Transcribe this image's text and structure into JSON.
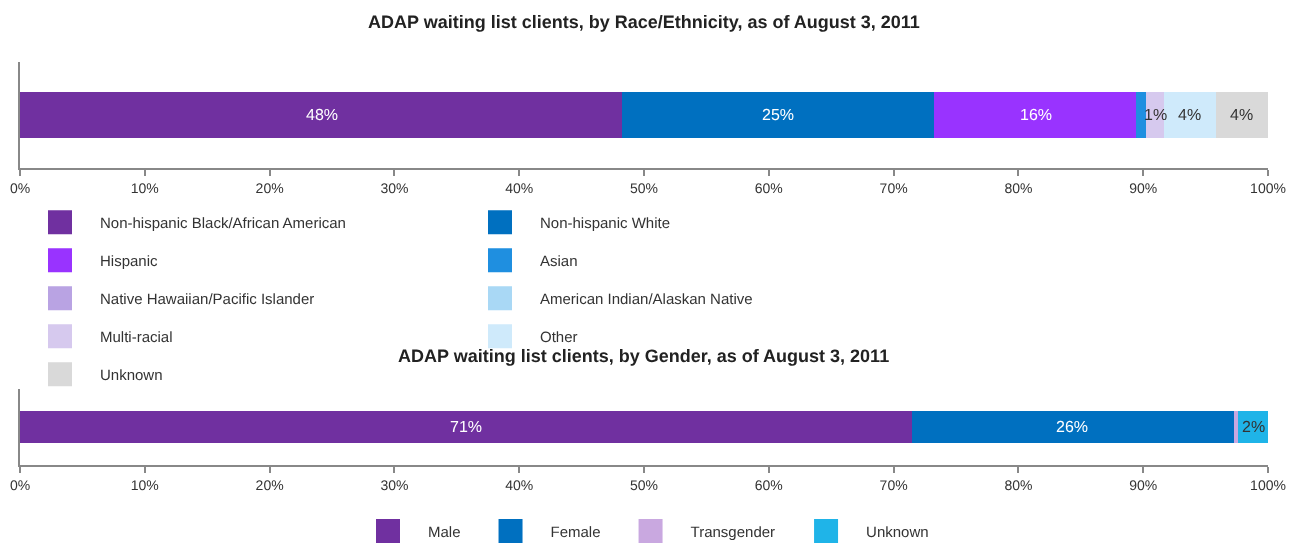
{
  "chart_data": [
    {
      "type": "bar",
      "title": "ADAP waiting list clients, by Race/Ethnicity, as of August 3, 2011",
      "orientation": "horizontal",
      "stacked": true,
      "categories": [
        null
      ],
      "xlim": [
        0,
        100
      ],
      "xticks": [
        {
          "value": 0,
          "label": "0%"
        },
        {
          "value": 10,
          "label": "10%"
        },
        {
          "value": 20,
          "label": "20%"
        },
        {
          "value": 30,
          "label": "30%"
        },
        {
          "value": 40,
          "label": "40%"
        },
        {
          "value": 50,
          "label": "50%"
        },
        {
          "value": 60,
          "label": "60%"
        },
        {
          "value": 70,
          "label": "70%"
        },
        {
          "value": 80,
          "label": "80%"
        },
        {
          "value": 90,
          "label": "90%"
        },
        {
          "value": 100,
          "label": "100%"
        }
      ],
      "legend": "bottom",
      "series": [
        {
          "name": "Non-hispanic Black/African American",
          "color": "#7030a0",
          "values": [
            48.3
          ],
          "value_labels": [
            "48%"
          ]
        },
        {
          "name": "Non-hispanic White",
          "color": "#0070c0",
          "values": [
            25.0
          ],
          "value_labels": [
            "25%"
          ]
        },
        {
          "name": "Hispanic",
          "color": "#9933ff",
          "values": [
            16.2
          ],
          "value_labels": [
            "16%"
          ]
        },
        {
          "name": "Asian",
          "color": "#1f8fe0",
          "values": [
            0.7
          ],
          "value_labels": [
            null
          ]
        },
        {
          "name": "Native Hawaiian/Pacific Islander",
          "color": "#b9a3e3",
          "values": [
            null
          ],
          "value_labels": [
            null
          ]
        },
        {
          "name": "American Indian/Alaskan Native",
          "color": "#a9d8f5",
          "values": [
            null
          ],
          "value_labels": [
            null
          ]
        },
        {
          "name": "Multi-racial",
          "color": "#d6c9ee",
          "values": [
            1.5
          ],
          "value_labels": [
            "1%"
          ]
        },
        {
          "name": "Other",
          "color": "#cfeafb",
          "values": [
            4.2
          ],
          "value_labels": [
            "4%"
          ]
        },
        {
          "name": "Unknown",
          "color": "#d9d9d9",
          "values": [
            4.1
          ],
          "value_labels": [
            "4%"
          ]
        }
      ]
    },
    {
      "type": "bar",
      "title": "ADAP waiting list clients, by Gender, as of August 3, 2011",
      "orientation": "horizontal",
      "stacked": true,
      "categories": [
        null
      ],
      "xlim": [
        0,
        100
      ],
      "xticks": [
        {
          "value": 0,
          "label": "0%"
        },
        {
          "value": 10,
          "label": "10%"
        },
        {
          "value": 20,
          "label": "20%"
        },
        {
          "value": 30,
          "label": "30%"
        },
        {
          "value": 40,
          "label": "40%"
        },
        {
          "value": 50,
          "label": "50%"
        },
        {
          "value": 60,
          "label": "60%"
        },
        {
          "value": 70,
          "label": "70%"
        },
        {
          "value": 80,
          "label": "80%"
        },
        {
          "value": 90,
          "label": "90%"
        },
        {
          "value": 100,
          "label": "100%"
        }
      ],
      "legend": "bottom",
      "series": [
        {
          "name": "Male",
          "color": "#7030a0",
          "values": [
            71.4
          ],
          "value_labels": [
            "71%"
          ]
        },
        {
          "name": "Female",
          "color": "#0070c0",
          "values": [
            25.9
          ],
          "value_labels": [
            "26%"
          ]
        },
        {
          "name": "Transgender",
          "color": "#c9a8e0",
          "values": [
            0.3
          ],
          "value_labels": [
            null
          ]
        },
        {
          "name": "Unknown",
          "color": "#1fb4e8",
          "values": [
            2.4
          ],
          "value_labels": [
            "2%"
          ]
        }
      ]
    }
  ]
}
